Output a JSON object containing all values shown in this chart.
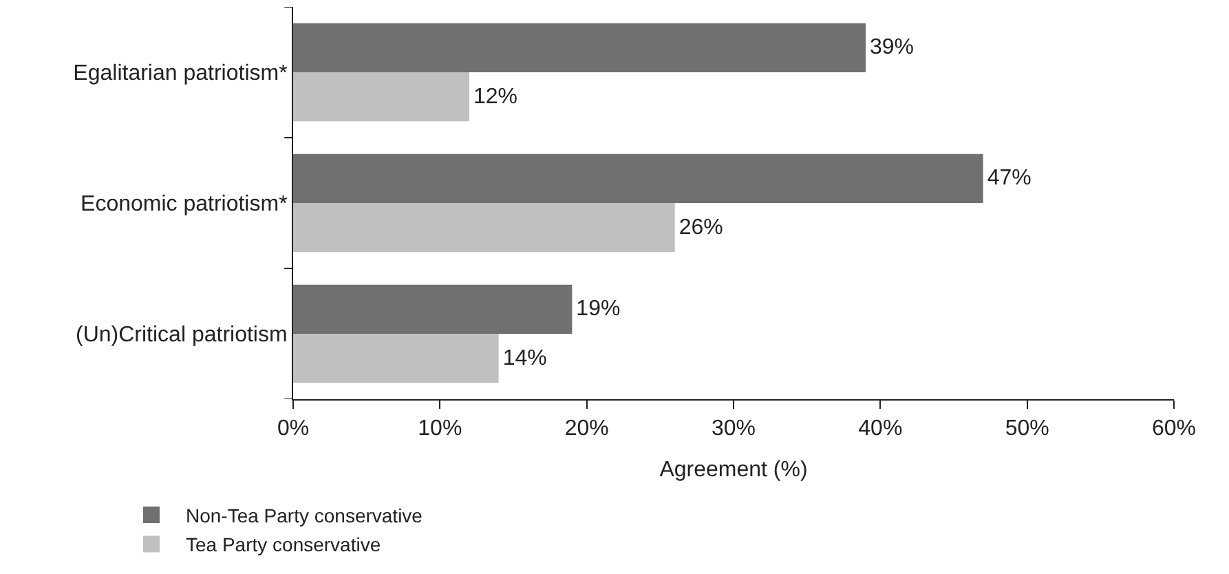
{
  "chart_data": {
    "type": "bar",
    "orientation": "horizontal",
    "xlabel": "Agreement (%)",
    "categories": [
      "Egalitarian patriotism*",
      "Economic patriotism*",
      "(Un)Critical patriotism"
    ],
    "series": [
      {
        "name": "Non-Tea Party conservative",
        "color": "#707070",
        "values": [
          39,
          47,
          19
        ],
        "value_labels": [
          "39%",
          "47%",
          "19%"
        ]
      },
      {
        "name": "Tea Party conservative",
        "color": "#c0c0c0",
        "values": [
          12,
          26,
          14
        ],
        "value_labels": [
          "12%",
          "26%",
          "14%"
        ]
      }
    ],
    "xlim": [
      0,
      60
    ],
    "xticks": [
      {
        "value": 0,
        "label": "0%"
      },
      {
        "value": 10,
        "label": "10%"
      },
      {
        "value": 20,
        "label": "20%"
      },
      {
        "value": 30,
        "label": "30%"
      },
      {
        "value": 40,
        "label": "40%"
      },
      {
        "value": 50,
        "label": "50%"
      },
      {
        "value": 60,
        "label": "60%"
      }
    ],
    "legend": "bottom left"
  }
}
